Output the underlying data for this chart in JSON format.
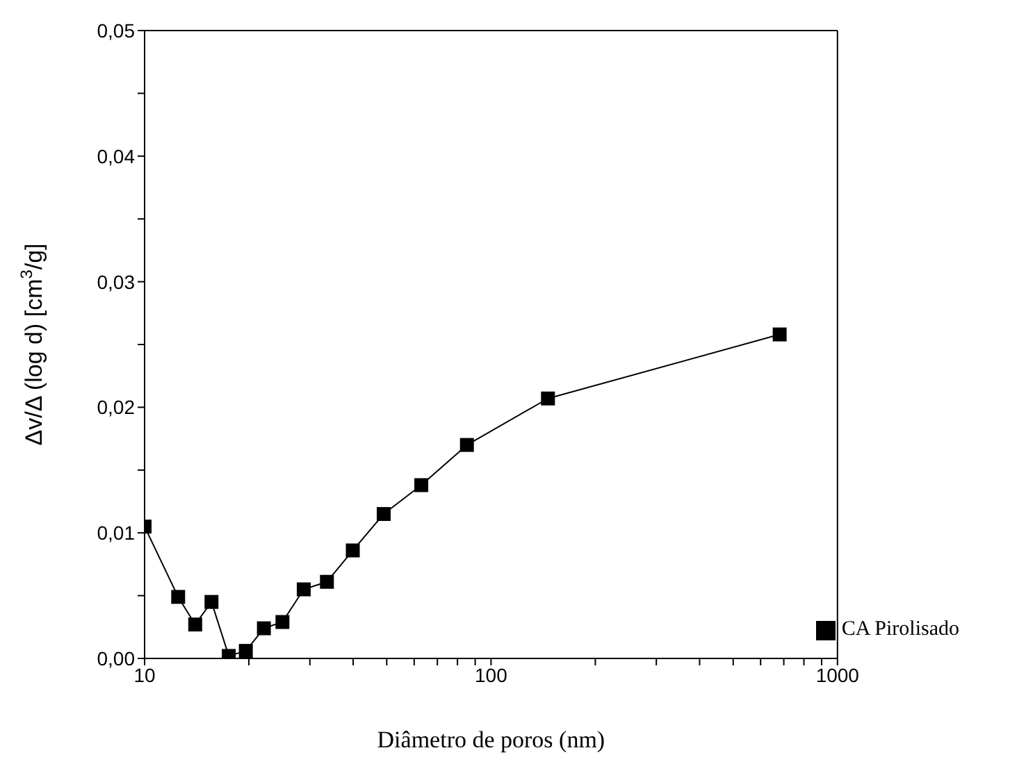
{
  "chart_data": {
    "type": "line",
    "xlabel": "Diâmetro de poros (nm)",
    "ylabel": "Δv/Δ (log d) [cm$^{3}$/g]",
    "x": [
      10,
      12.5,
      14,
      15.6,
      17.5,
      19.6,
      22.1,
      25,
      28.8,
      33.6,
      39.9,
      49,
      62.9,
      85.2,
      146,
      681
    ],
    "series": [
      {
        "name": "CA Pirolisado",
        "color": "#000000",
        "values": [
          0.0105,
          0.0049,
          0.0027,
          0.0045,
          0.0002,
          0.0006,
          0.0024,
          0.0029,
          0.0055,
          0.0061,
          0.0086,
          0.0115,
          0.0138,
          0.017,
          0.0207,
          0.0258
        ]
      }
    ],
    "log": "x",
    "xlim": [
      10,
      1000
    ],
    "xticks": [
      10,
      {
        "value": 20,
        "label": null
      },
      {
        "value": 30,
        "label": null
      },
      {
        "value": 40,
        "label": null
      },
      {
        "value": 50,
        "label": null
      },
      {
        "value": 60,
        "label": null
      },
      {
        "value": 70,
        "label": null
      },
      {
        "value": 80,
        "label": null
      },
      {
        "value": 90,
        "label": null
      },
      100,
      {
        "value": 200,
        "label": null
      },
      {
        "value": 300,
        "label": null
      },
      {
        "value": 400,
        "label": null
      },
      {
        "value": 500,
        "label": null
      },
      {
        "value": 600,
        "label": null
      },
      {
        "value": 700,
        "label": null
      },
      {
        "value": 800,
        "label": null
      },
      {
        "value": 900,
        "label": null
      },
      1000
    ],
    "ylim": [
      0,
      0.05
    ],
    "yticks": [
      {
        "value": 0,
        "label": "0,00"
      },
      {
        "value": 0.005,
        "label": null
      },
      {
        "value": 0.01,
        "label": "0,01"
      },
      {
        "value": 0.015,
        "label": null
      },
      {
        "value": 0.02,
        "label": "0,02"
      },
      {
        "value": 0.025,
        "label": null
      },
      {
        "value": 0.03,
        "label": "0,03"
      },
      {
        "value": 0.035,
        "label": null
      },
      {
        "value": 0.04,
        "label": "0,04"
      },
      {
        "value": 0.045,
        "label": null
      },
      {
        "value": 0.05,
        "label": "0,05"
      }
    ],
    "legend": "bottom right",
    "marker": "square",
    "line_style": "solid",
    "grid": false
  }
}
